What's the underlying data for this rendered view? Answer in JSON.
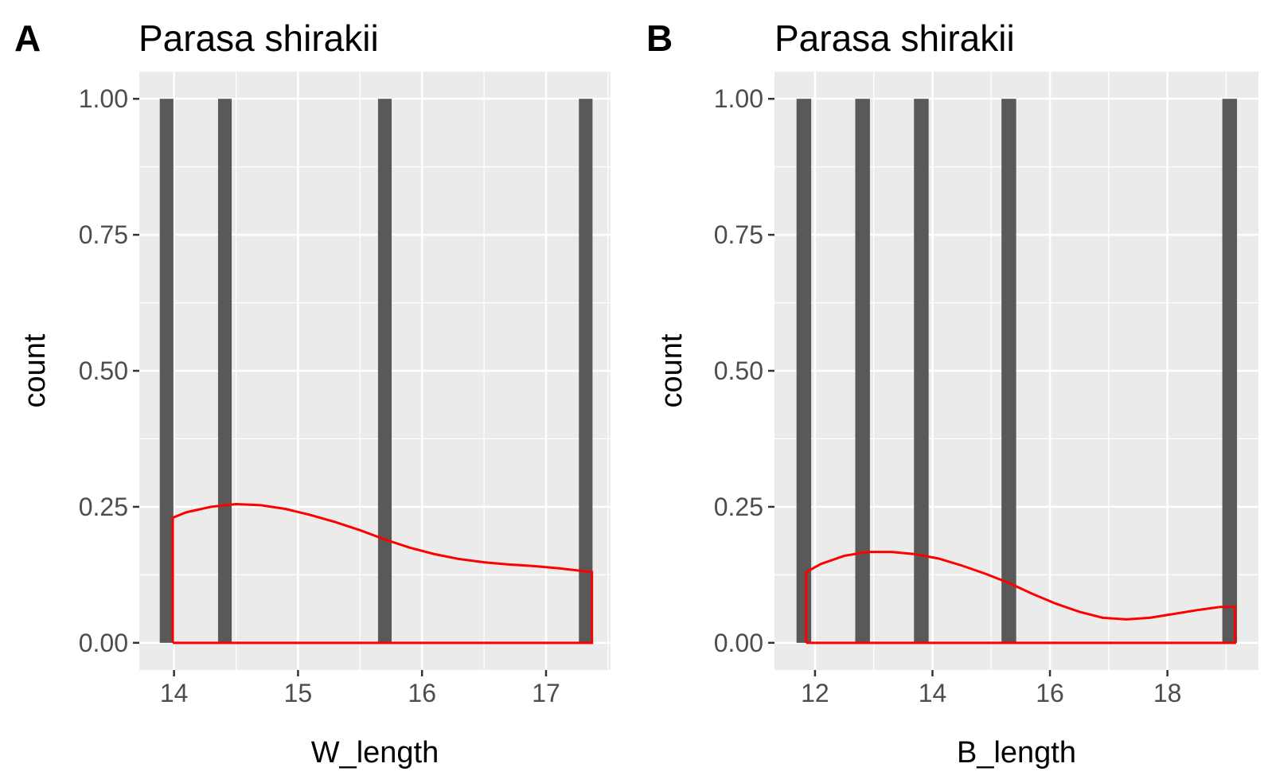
{
  "chart_data": [
    {
      "panel": "A",
      "type": "bar",
      "title": "Parasa shirakii",
      "xlabel": "W_length",
      "ylabel": "count",
      "xlim": [
        13.72,
        17.52
      ],
      "ylim": [
        -0.05,
        1.05
      ],
      "x_ticks": [
        "14",
        "15",
        "16",
        "17"
      ],
      "x_tick_values": [
        14,
        15,
        16,
        17
      ],
      "y_ticks": [
        "0.00",
        "0.25",
        "0.50",
        "0.75",
        "1.00"
      ],
      "y_tick_values": [
        0,
        0.25,
        0.5,
        0.75,
        1.0
      ],
      "bar_width": 0.11,
      "bars": [
        {
          "x": 13.94,
          "count": 1
        },
        {
          "x": 14.41,
          "count": 1
        },
        {
          "x": 15.7,
          "count": 1
        },
        {
          "x": 17.32,
          "count": 1
        }
      ],
      "density": {
        "color": "#ff0000",
        "x": [
          13.99,
          14.1,
          14.3,
          14.5,
          14.7,
          14.9,
          15.1,
          15.3,
          15.5,
          15.7,
          15.9,
          16.1,
          16.3,
          16.5,
          16.7,
          16.9,
          17.1,
          17.37
        ],
        "y": [
          0.23,
          0.24,
          0.25,
          0.255,
          0.253,
          0.246,
          0.235,
          0.222,
          0.207,
          0.19,
          0.175,
          0.163,
          0.154,
          0.148,
          0.144,
          0.141,
          0.137,
          0.13
        ]
      },
      "grid": true,
      "background": "#ebebeb",
      "bar_color": "#595959"
    },
    {
      "panel": "B",
      "type": "bar",
      "title": "Parasa shirakii",
      "xlabel": "B_length",
      "ylabel": "count",
      "xlim": [
        11.31,
        19.55
      ],
      "ylim": [
        -0.05,
        1.05
      ],
      "x_ticks": [
        "12",
        "14",
        "16",
        "18"
      ],
      "x_tick_values": [
        12,
        14,
        16,
        18
      ],
      "y_ticks": [
        "0.00",
        "0.25",
        "0.50",
        "0.75",
        "1.00"
      ],
      "y_tick_values": [
        0,
        0.25,
        0.5,
        0.75,
        1.0
      ],
      "bar_width": 0.25,
      "bars": [
        {
          "x": 11.81,
          "count": 1
        },
        {
          "x": 12.81,
          "count": 1
        },
        {
          "x": 13.81,
          "count": 1
        },
        {
          "x": 15.3,
          "count": 1
        },
        {
          "x": 19.06,
          "count": 1
        }
      ],
      "density": {
        "color": "#ff0000",
        "x": [
          11.85,
          12.1,
          12.5,
          12.9,
          13.3,
          13.7,
          14.1,
          14.5,
          14.9,
          15.3,
          15.7,
          16.1,
          16.5,
          16.9,
          17.3,
          17.7,
          18.1,
          18.5,
          18.9,
          19.15
        ],
        "y": [
          0.13,
          0.145,
          0.16,
          0.167,
          0.167,
          0.163,
          0.155,
          0.142,
          0.127,
          0.11,
          0.09,
          0.072,
          0.057,
          0.046,
          0.043,
          0.046,
          0.053,
          0.06,
          0.066,
          0.066
        ]
      },
      "grid": true,
      "background": "#ebebeb",
      "bar_color": "#595959"
    }
  ]
}
